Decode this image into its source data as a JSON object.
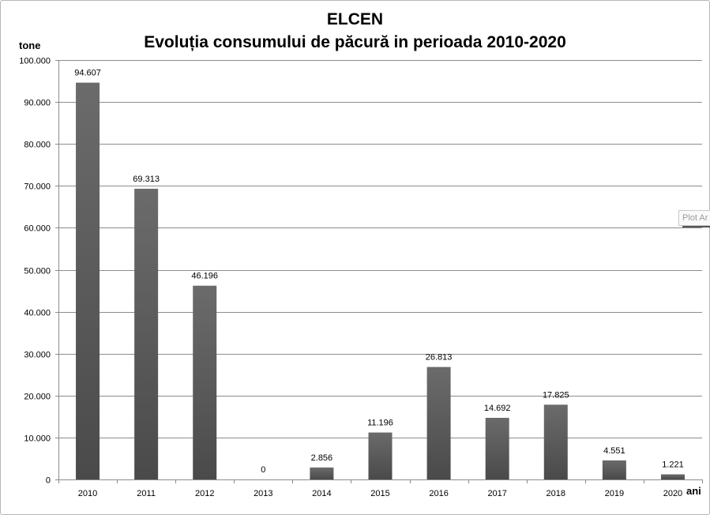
{
  "chart_data": {
    "type": "bar",
    "title_lines": [
      "ELCEN",
      "Evoluția consumului de păcură in perioada 2010-2020"
    ],
    "ylabel": "tone",
    "xlabel": "ani",
    "categories": [
      "2010",
      "2011",
      "2012",
      "2013",
      "2014",
      "2015",
      "2016",
      "2017",
      "2018",
      "2019",
      "2020"
    ],
    "values": [
      94607,
      69313,
      46196,
      0,
      2856,
      11196,
      26813,
      14692,
      17825,
      4551,
      1221
    ],
    "data_labels": [
      "94.607",
      "69.313",
      "46.196",
      "0",
      "2.856",
      "11.196",
      "26.813",
      "14.692",
      "17.825",
      "4.551",
      "1.221"
    ],
    "ylim": [
      0,
      100000
    ],
    "yticks": [
      0,
      10000,
      20000,
      30000,
      40000,
      50000,
      60000,
      70000,
      80000,
      90000,
      100000
    ],
    "ytick_labels": [
      "0",
      "10.000",
      "20.000",
      "30.000",
      "40.000",
      "50.000",
      "60.000",
      "70.000",
      "80.000",
      "90.000",
      "100.000"
    ],
    "grid": true,
    "legend": "none",
    "bar_color": "#4a4a4a",
    "bar_highlight_color": "#6b6b6b"
  },
  "overlay": {
    "plot_area_tag": "Plot Ar"
  }
}
